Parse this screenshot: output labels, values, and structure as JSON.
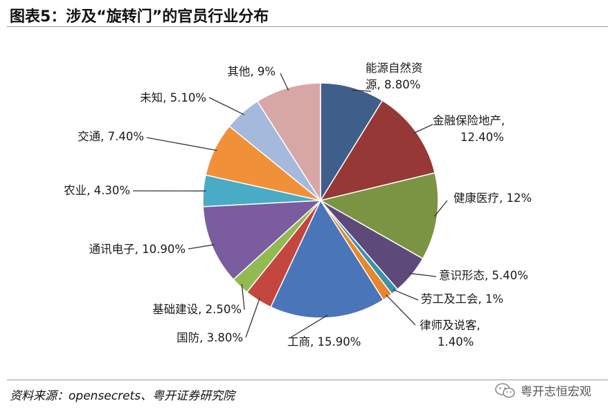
{
  "figure": {
    "title": "图表5：涉及“旋转门”的官员行业分布",
    "source": "资料来源：opensecrets、粤开证券研究院",
    "watermark": "粤开志恒宏观"
  },
  "icons": {
    "watermark": "wechat-icon"
  },
  "chart_data": {
    "type": "pie",
    "title": "",
    "start_angle_deg": 0,
    "direction": "clockwise",
    "slices": [
      {
        "label": "能源自然资源",
        "value": 8.8,
        "display": "能源自然资源, 8.80%",
        "color": "#3e5f8a"
      },
      {
        "label": "金融保险地产",
        "value": 12.4,
        "display": "金融保险地产, 12.40%",
        "color": "#963836"
      },
      {
        "label": "健康医疗",
        "value": 12,
        "display": "健康医疗, 12%",
        "color": "#7a9443"
      },
      {
        "label": "意识形态",
        "value": 5.4,
        "display": "意识形态, 5.40%",
        "color": "#5d4a7b"
      },
      {
        "label": "劳工及工会",
        "value": 1,
        "display": "劳工及工会, 1%",
        "color": "#3a93aa"
      },
      {
        "label": "律师及说客",
        "value": 1.4,
        "display": "律师及说客, 1.40%",
        "color": "#e6862d"
      },
      {
        "label": "工商",
        "value": 15.9,
        "display": "工商, 15.90%",
        "color": "#4a75b8"
      },
      {
        "label": "国防",
        "value": 3.8,
        "display": "国防, 3.80%",
        "color": "#c3473f"
      },
      {
        "label": "基础建设",
        "value": 2.5,
        "display": "基础建设, 2.50%",
        "color": "#92ba52"
      },
      {
        "label": "通讯电子",
        "value": 10.9,
        "display": "通讯电子, 10.90%",
        "color": "#7a5c9f"
      },
      {
        "label": "农业",
        "value": 4.3,
        "display": "农业, 4.30%",
        "color": "#49abc6"
      },
      {
        "label": "交通",
        "value": 7.4,
        "display": "交通, 7.40%",
        "color": "#f0913a"
      },
      {
        "label": "未知",
        "value": 5.1,
        "display": "未知, 5.10%",
        "color": "#a5b9dc"
      },
      {
        "label": "其他",
        "value": 9,
        "display": "其他, 9%",
        "color": "#d7a7a6"
      }
    ]
  }
}
